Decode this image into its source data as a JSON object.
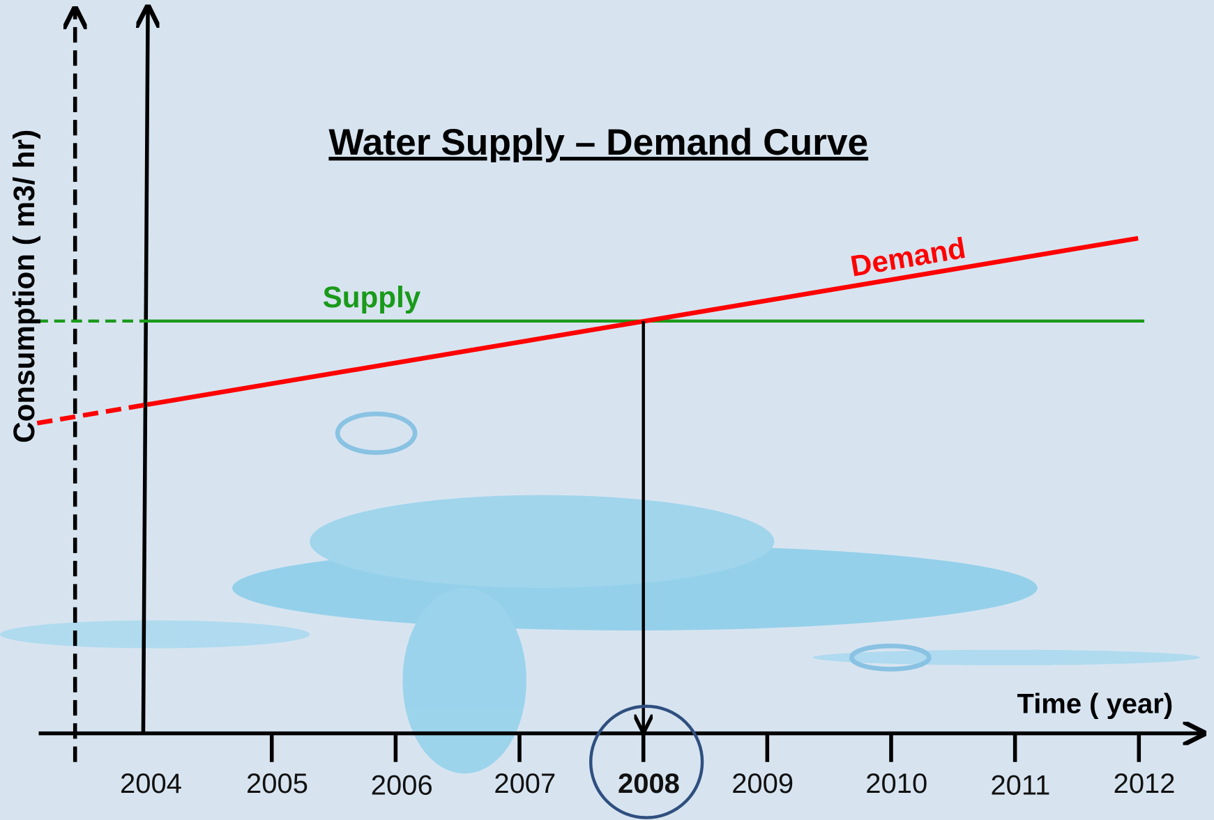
{
  "title": "Water Supply – Demand Curve",
  "y_axis_label": "Consumption ( m3/ hr)",
  "x_axis_label": "Time ( year)",
  "lines": {
    "supply": "Supply",
    "demand": "Demand"
  },
  "years": [
    2004,
    2005,
    2006,
    2007,
    2008,
    2009,
    2010,
    2011,
    2012
  ]
}
